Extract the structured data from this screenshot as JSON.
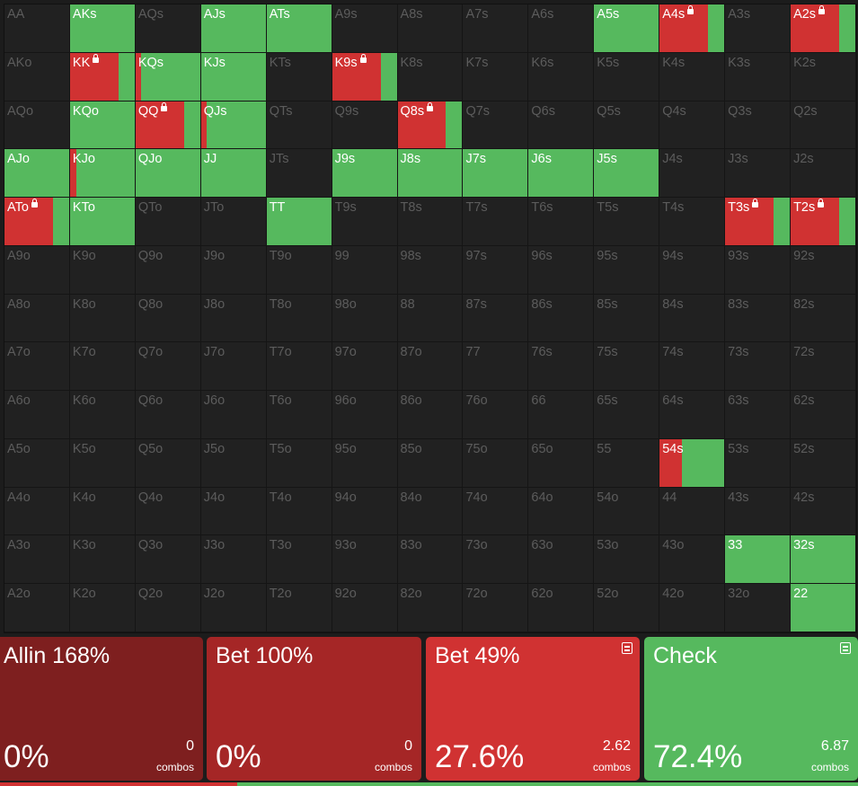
{
  "colors": {
    "allin": "#7e1f1f",
    "bet_large": "#a52626",
    "bet_small": "#d03232",
    "check": "#56b95e",
    "empty_cell": "#212121"
  },
  "grid": {
    "rows": [
      [
        {
          "label": "AA"
        },
        {
          "label": "AKs",
          "active": true,
          "red": 0
        },
        {
          "label": "AQs"
        },
        {
          "label": "AJs",
          "active": true,
          "red": 0
        },
        {
          "label": "ATs",
          "active": true,
          "red": 0
        },
        {
          "label": "A9s"
        },
        {
          "label": "A8s"
        },
        {
          "label": "A7s"
        },
        {
          "label": "A6s"
        },
        {
          "label": "A5s",
          "active": true,
          "red": 0
        },
        {
          "label": "A4s",
          "active": true,
          "red": 0.75,
          "lock": true
        },
        {
          "label": "A3s"
        },
        {
          "label": "A2s",
          "active": true,
          "red": 0.75,
          "lock": true
        }
      ],
      [
        {
          "label": "AKo"
        },
        {
          "label": "KK",
          "active": true,
          "red": 0.75,
          "lock": true
        },
        {
          "label": "KQs",
          "active": true,
          "red": 0.08
        },
        {
          "label": "KJs",
          "active": true,
          "red": 0
        },
        {
          "label": "KTs"
        },
        {
          "label": "K9s",
          "active": true,
          "red": 0.75,
          "lock": true
        },
        {
          "label": "K8s"
        },
        {
          "label": "K7s"
        },
        {
          "label": "K6s"
        },
        {
          "label": "K5s"
        },
        {
          "label": "K4s"
        },
        {
          "label": "K3s"
        },
        {
          "label": "K2s"
        }
      ],
      [
        {
          "label": "AQo"
        },
        {
          "label": "KQo",
          "active": true,
          "red": 0
        },
        {
          "label": "QQ",
          "active": true,
          "red": 0.75,
          "lock": true
        },
        {
          "label": "QJs",
          "active": true,
          "red": 0.08
        },
        {
          "label": "QTs"
        },
        {
          "label": "Q9s"
        },
        {
          "label": "Q8s",
          "active": true,
          "red": 0.75,
          "lock": true
        },
        {
          "label": "Q7s"
        },
        {
          "label": "Q6s"
        },
        {
          "label": "Q5s"
        },
        {
          "label": "Q4s"
        },
        {
          "label": "Q3s"
        },
        {
          "label": "Q2s"
        }
      ],
      [
        {
          "label": "AJo",
          "active": true,
          "red": 0
        },
        {
          "label": "KJo",
          "active": true,
          "red": 0.1
        },
        {
          "label": "QJo",
          "active": true,
          "red": 0
        },
        {
          "label": "JJ",
          "active": true,
          "red": 0
        },
        {
          "label": "JTs"
        },
        {
          "label": "J9s",
          "active": true,
          "red": 0
        },
        {
          "label": "J8s",
          "active": true,
          "red": 0
        },
        {
          "label": "J7s",
          "active": true,
          "red": 0
        },
        {
          "label": "J6s",
          "active": true,
          "red": 0
        },
        {
          "label": "J5s",
          "active": true,
          "red": 0
        },
        {
          "label": "J4s"
        },
        {
          "label": "J3s"
        },
        {
          "label": "J2s"
        }
      ],
      [
        {
          "label": "ATo",
          "active": true,
          "red": 0.75,
          "lock": true
        },
        {
          "label": "KTo",
          "active": true,
          "red": 0
        },
        {
          "label": "QTo"
        },
        {
          "label": "JTo"
        },
        {
          "label": "TT",
          "active": true,
          "red": 0
        },
        {
          "label": "T9s"
        },
        {
          "label": "T8s"
        },
        {
          "label": "T7s"
        },
        {
          "label": "T6s"
        },
        {
          "label": "T5s"
        },
        {
          "label": "T4s"
        },
        {
          "label": "T3s",
          "active": true,
          "red": 0.75,
          "lock": true
        },
        {
          "label": "T2s",
          "active": true,
          "red": 0.75,
          "lock": true
        }
      ],
      [
        {
          "label": "A9o"
        },
        {
          "label": "K9o"
        },
        {
          "label": "Q9o"
        },
        {
          "label": "J9o"
        },
        {
          "label": "T9o"
        },
        {
          "label": "99"
        },
        {
          "label": "98s"
        },
        {
          "label": "97s"
        },
        {
          "label": "96s"
        },
        {
          "label": "95s"
        },
        {
          "label": "94s"
        },
        {
          "label": "93s"
        },
        {
          "label": "92s"
        }
      ],
      [
        {
          "label": "A8o"
        },
        {
          "label": "K8o"
        },
        {
          "label": "Q8o"
        },
        {
          "label": "J8o"
        },
        {
          "label": "T8o"
        },
        {
          "label": "98o"
        },
        {
          "label": "88"
        },
        {
          "label": "87s"
        },
        {
          "label": "86s"
        },
        {
          "label": "85s"
        },
        {
          "label": "84s"
        },
        {
          "label": "83s"
        },
        {
          "label": "82s"
        }
      ],
      [
        {
          "label": "A7o"
        },
        {
          "label": "K7o"
        },
        {
          "label": "Q7o"
        },
        {
          "label": "J7o"
        },
        {
          "label": "T7o"
        },
        {
          "label": "97o"
        },
        {
          "label": "87o"
        },
        {
          "label": "77"
        },
        {
          "label": "76s"
        },
        {
          "label": "75s"
        },
        {
          "label": "74s"
        },
        {
          "label": "73s"
        },
        {
          "label": "72s"
        }
      ],
      [
        {
          "label": "A6o"
        },
        {
          "label": "K6o"
        },
        {
          "label": "Q6o"
        },
        {
          "label": "J6o"
        },
        {
          "label": "T6o"
        },
        {
          "label": "96o"
        },
        {
          "label": "86o"
        },
        {
          "label": "76o"
        },
        {
          "label": "66"
        },
        {
          "label": "65s"
        },
        {
          "label": "64s"
        },
        {
          "label": "63s"
        },
        {
          "label": "62s"
        }
      ],
      [
        {
          "label": "A5o"
        },
        {
          "label": "K5o"
        },
        {
          "label": "Q5o"
        },
        {
          "label": "J5o"
        },
        {
          "label": "T5o"
        },
        {
          "label": "95o"
        },
        {
          "label": "85o"
        },
        {
          "label": "75o"
        },
        {
          "label": "65o"
        },
        {
          "label": "55"
        },
        {
          "label": "54s",
          "active": true,
          "red": 0.35
        },
        {
          "label": "53s"
        },
        {
          "label": "52s"
        }
      ],
      [
        {
          "label": "A4o"
        },
        {
          "label": "K4o"
        },
        {
          "label": "Q4o"
        },
        {
          "label": "J4o"
        },
        {
          "label": "T4o"
        },
        {
          "label": "94o"
        },
        {
          "label": "84o"
        },
        {
          "label": "74o"
        },
        {
          "label": "64o"
        },
        {
          "label": "54o"
        },
        {
          "label": "44"
        },
        {
          "label": "43s"
        },
        {
          "label": "42s"
        }
      ],
      [
        {
          "label": "A3o"
        },
        {
          "label": "K3o"
        },
        {
          "label": "Q3o"
        },
        {
          "label": "J3o"
        },
        {
          "label": "T3o"
        },
        {
          "label": "93o"
        },
        {
          "label": "83o"
        },
        {
          "label": "73o"
        },
        {
          "label": "63o"
        },
        {
          "label": "53o"
        },
        {
          "label": "43o"
        },
        {
          "label": "33",
          "active": true,
          "red": 0
        },
        {
          "label": "32s",
          "active": true,
          "red": 0
        }
      ],
      [
        {
          "label": "A2o"
        },
        {
          "label": "K2o"
        },
        {
          "label": "Q2o"
        },
        {
          "label": "J2o"
        },
        {
          "label": "T2o"
        },
        {
          "label": "92o"
        },
        {
          "label": "82o"
        },
        {
          "label": "72o"
        },
        {
          "label": "62o"
        },
        {
          "label": "52o"
        },
        {
          "label": "42o"
        },
        {
          "label": "32o"
        },
        {
          "label": "22",
          "active": true,
          "red": 0
        }
      ]
    ]
  },
  "actions": [
    {
      "title": "Allin 168%",
      "pct": "0%",
      "combos": "0",
      "combos_label": "combos",
      "color": "#7e1f1f",
      "note": false
    },
    {
      "title": "Bet 100%",
      "pct": "0%",
      "combos": "0",
      "combos_label": "combos",
      "color": "#a52626",
      "note": false
    },
    {
      "title": "Bet 49%",
      "pct": "27.6%",
      "combos": "2.62",
      "combos_label": "combos",
      "color": "#d03232",
      "note": true
    },
    {
      "title": "Check",
      "pct": "72.4%",
      "combos": "6.87",
      "combos_label": "combos",
      "color": "#56b95e",
      "note": true
    }
  ],
  "summary_bar": {
    "bet_fraction": 0.276,
    "check_fraction": 0.724
  }
}
